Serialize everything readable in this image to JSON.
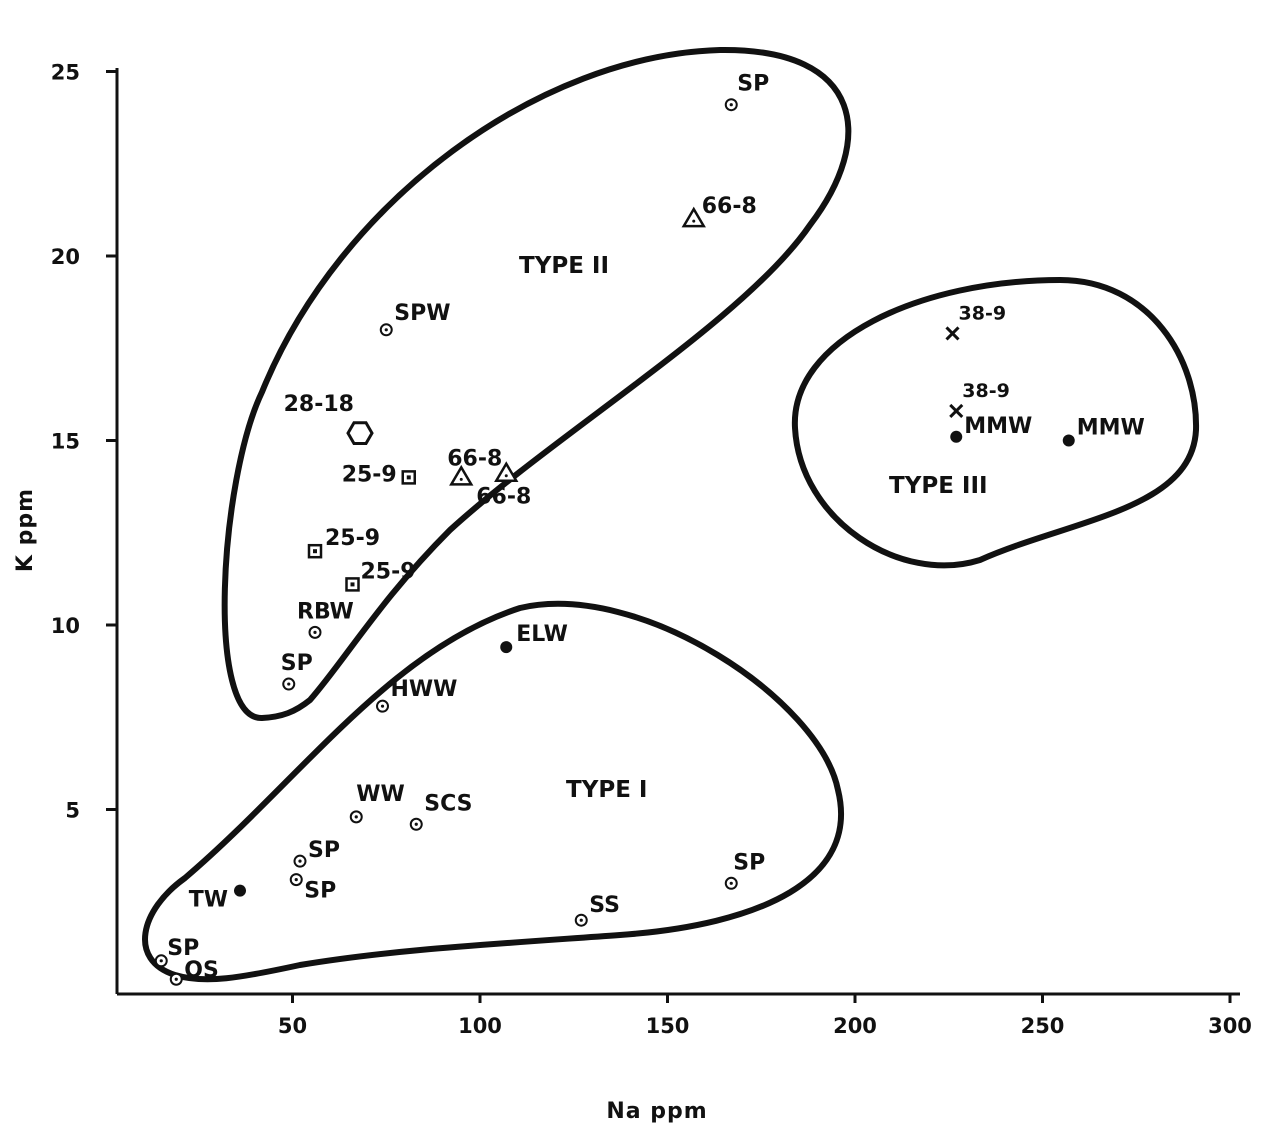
{
  "chart_data": {
    "type": "scatter",
    "title": "",
    "xlabel": "Na ppm",
    "ylabel": "K ppm",
    "xlim": [
      0,
      300
    ],
    "ylim": [
      0,
      26
    ],
    "grid": false,
    "x_ticks": [
      50,
      100,
      150,
      200,
      250,
      300
    ],
    "y_ticks": [
      5,
      10,
      15,
      20,
      25
    ],
    "regions": [
      {
        "name": "TYPE I"
      },
      {
        "name": "TYPE II"
      },
      {
        "name": "TYPE III"
      }
    ],
    "points": [
      {
        "label": "SP",
        "x": 167,
        "y": 24.1,
        "marker": "circle-dot"
      },
      {
        "label": "66-8",
        "x": 157,
        "y": 21.0,
        "marker": "triangle"
      },
      {
        "label": "SPW",
        "x": 75,
        "y": 18.0,
        "marker": "circle-dot"
      },
      {
        "label": "28-18",
        "x": 68,
        "y": 15.2,
        "marker": "hexagon"
      },
      {
        "label": "25-9",
        "x": 81,
        "y": 14.0,
        "marker": "square"
      },
      {
        "label": "66-8",
        "x": 95,
        "y": 14.0,
        "marker": "triangle"
      },
      {
        "label": "66-8",
        "x": 107,
        "y": 14.1,
        "marker": "triangle"
      },
      {
        "label": "25-9",
        "x": 56,
        "y": 12.0,
        "marker": "square"
      },
      {
        "label": "25-9",
        "x": 66,
        "y": 11.1,
        "marker": "square"
      },
      {
        "label": "RBW",
        "x": 56,
        "y": 9.8,
        "marker": "circle-dot"
      },
      {
        "label": "SP",
        "x": 49,
        "y": 8.4,
        "marker": "circle-dot"
      },
      {
        "label": "ELW",
        "x": 107,
        "y": 9.4,
        "marker": "dot"
      },
      {
        "label": "HWW",
        "x": 74,
        "y": 7.8,
        "marker": "circle-dot"
      },
      {
        "label": "WW",
        "x": 67,
        "y": 4.8,
        "marker": "circle-dot"
      },
      {
        "label": "SCS",
        "x": 83,
        "y": 4.6,
        "marker": "circle-dot"
      },
      {
        "label": "SP",
        "x": 52,
        "y": 3.6,
        "marker": "circle-dot"
      },
      {
        "label": "SP",
        "x": 51,
        "y": 3.1,
        "marker": "circle-dot"
      },
      {
        "label": "TW",
        "x": 36,
        "y": 2.8,
        "marker": "dot"
      },
      {
        "label": "SS",
        "x": 127,
        "y": 2.0,
        "marker": "circle-dot"
      },
      {
        "label": "SP",
        "x": 167,
        "y": 3.0,
        "marker": "circle-dot"
      },
      {
        "label": "SP",
        "x": 15,
        "y": 0.9,
        "marker": "circle-dot"
      },
      {
        "label": "OS",
        "x": 19,
        "y": 0.4,
        "marker": "circle-dot"
      },
      {
        "label": "38-9",
        "x": 226,
        "y": 17.9,
        "marker": "x"
      },
      {
        "label": "38-9",
        "x": 227,
        "y": 15.8,
        "marker": "x"
      },
      {
        "label": "MMW",
        "x": 227,
        "y": 15.1,
        "marker": "dot"
      },
      {
        "label": "MMW",
        "x": 257,
        "y": 15.0,
        "marker": "dot"
      }
    ]
  }
}
